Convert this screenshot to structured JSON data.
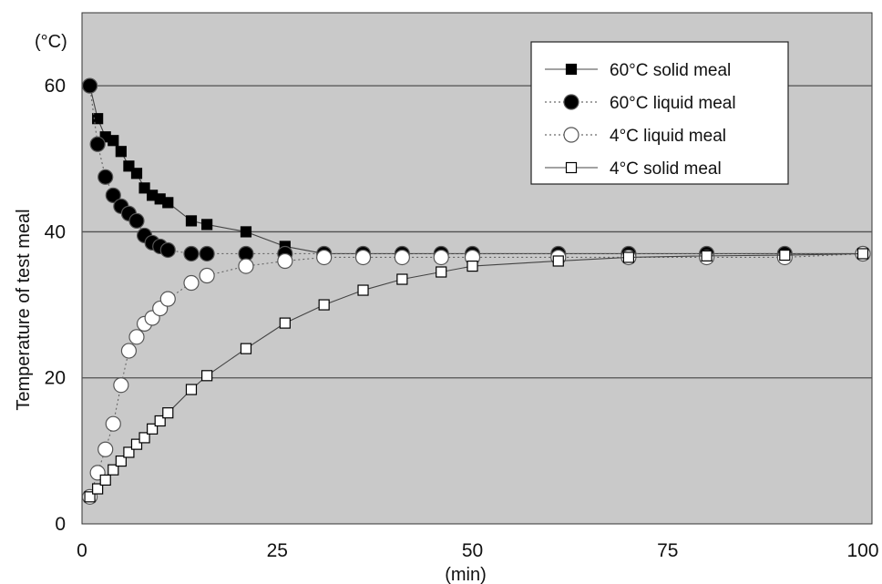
{
  "chart_data": {
    "type": "scatter",
    "xlabel": "(min)",
    "ylabel": "Temperature of test meal",
    "yunit": "(°C)",
    "xlim": [
      0,
      100
    ],
    "ylim": [
      0,
      70
    ],
    "xticks": [
      "0",
      "25",
      "50",
      "75",
      "100"
    ],
    "yticks": [
      "0",
      "20",
      "40",
      "60"
    ],
    "grid": "horizontal",
    "legend_position": "top-right",
    "colors": {
      "plot_bg": "#c9c9c9",
      "grid": "#505050",
      "marker_dark": "#000000",
      "marker_light": "#ffffff"
    },
    "series": [
      {
        "name": "60°C solid meal",
        "marker": "square",
        "fill": "#000000",
        "line": "solid",
        "x": [
          1,
          2,
          3,
          4,
          5,
          6,
          7,
          8,
          9,
          10,
          11,
          14,
          16,
          21,
          26,
          31,
          36,
          41,
          46,
          50,
          61,
          70,
          80,
          90,
          100
        ],
        "y": [
          60,
          55.5,
          53,
          52.5,
          51,
          49,
          48,
          46,
          45,
          44.5,
          44,
          41.5,
          41,
          40,
          38,
          37,
          37,
          37,
          37,
          37,
          37,
          37,
          37,
          37,
          37
        ]
      },
      {
        "name": "60°C liquid meal",
        "marker": "circle",
        "fill": "#000000",
        "line": "dotted",
        "x": [
          1,
          2,
          3,
          4,
          5,
          6,
          7,
          8,
          9,
          10,
          11,
          14,
          16,
          21,
          26,
          31,
          36,
          41,
          46,
          50,
          61,
          70,
          80,
          90,
          100
        ],
        "y": [
          60,
          52,
          47.5,
          45,
          43.5,
          42.5,
          41.5,
          39.5,
          38.5,
          38,
          37.5,
          37,
          37,
          37,
          37,
          37,
          37,
          37,
          37,
          37,
          37,
          37,
          37,
          37,
          37
        ]
      },
      {
        "name": "4°C liquid meal",
        "marker": "circle",
        "fill": "#ffffff",
        "line": "dotted",
        "x": [
          1,
          2,
          3,
          4,
          5,
          6,
          7,
          8,
          9,
          10,
          11,
          14,
          16,
          21,
          26,
          31,
          36,
          41,
          46,
          50,
          61,
          70,
          80,
          90,
          100
        ],
        "y": [
          3.7,
          7,
          10.2,
          13.7,
          19,
          23.7,
          25.6,
          27.4,
          28.2,
          29.5,
          30.8,
          33,
          34,
          35.3,
          36,
          36.5,
          36.5,
          36.5,
          36.5,
          36.5,
          36.5,
          36.5,
          36.5,
          36.5,
          37
        ]
      },
      {
        "name": "4°C solid meal",
        "marker": "square",
        "fill": "#ffffff",
        "line": "solid",
        "x": [
          1,
          2,
          3,
          4,
          5,
          6,
          7,
          8,
          9,
          10,
          11,
          14,
          16,
          21,
          26,
          31,
          36,
          41,
          46,
          50,
          61,
          70,
          80,
          90,
          100
        ],
        "y": [
          3.7,
          4.8,
          6,
          7.4,
          8.6,
          9.8,
          10.9,
          11.8,
          13,
          14.1,
          15.2,
          18.4,
          20.3,
          24,
          27.5,
          30,
          32,
          33.5,
          34.5,
          35.3,
          36,
          36.5,
          36.7,
          36.8,
          37
        ]
      }
    ]
  }
}
